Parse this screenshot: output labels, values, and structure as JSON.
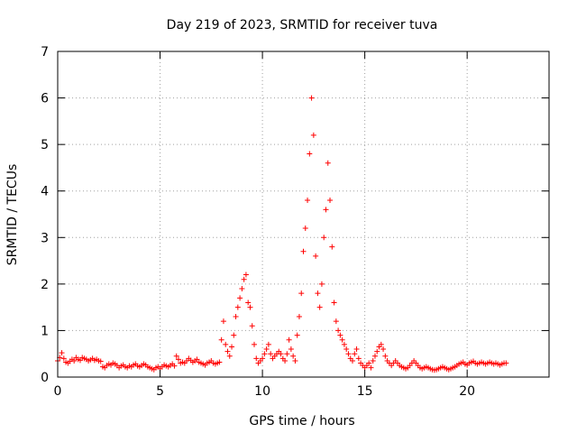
{
  "chart_data": {
    "type": "scatter",
    "title": "Day 219 of 2023, SRMTID for receiver tuva",
    "xlabel": "GPS time / hours",
    "ylabel": "SRMTID / TECUs",
    "xlim": [
      0,
      24
    ],
    "ylim": [
      0,
      7
    ],
    "xticks": [
      0,
      5,
      10,
      15,
      20
    ],
    "yticks": [
      0,
      1,
      2,
      3,
      4,
      5,
      6,
      7
    ],
    "grid": true,
    "marker": "+",
    "series": [
      {
        "name": "SRMTID",
        "color": "#ff0000",
        "x_start": 0.0,
        "x_step": 0.1,
        "values": [
          0.35,
          0.42,
          0.52,
          0.4,
          0.32,
          0.3,
          0.34,
          0.38,
          0.35,
          0.42,
          0.38,
          0.36,
          0.42,
          0.4,
          0.38,
          0.35,
          0.37,
          0.4,
          0.36,
          0.38,
          0.35,
          0.34,
          0.22,
          0.2,
          0.25,
          0.28,
          0.26,
          0.3,
          0.28,
          0.25,
          0.2,
          0.24,
          0.26,
          0.22,
          0.2,
          0.24,
          0.22,
          0.26,
          0.28,
          0.24,
          0.22,
          0.25,
          0.28,
          0.26,
          0.22,
          0.2,
          0.18,
          0.16,
          0.2,
          0.22,
          0.18,
          0.22,
          0.26,
          0.24,
          0.22,
          0.25,
          0.28,
          0.24,
          0.45,
          0.38,
          0.3,
          0.32,
          0.3,
          0.35,
          0.4,
          0.36,
          0.32,
          0.35,
          0.38,
          0.32,
          0.3,
          0.28,
          0.26,
          0.3,
          0.32,
          0.35,
          0.3,
          0.28,
          0.3,
          0.32,
          0.8,
          1.2,
          0.7,
          0.55,
          0.45,
          0.65,
          0.9,
          1.3,
          1.5,
          1.7,
          1.9,
          2.1,
          2.2,
          1.6,
          1.5,
          1.1,
          0.7,
          0.4,
          0.3,
          0.35,
          0.4,
          0.5,
          0.6,
          0.7,
          0.5,
          0.4,
          0.45,
          0.5,
          0.55,
          0.5,
          0.4,
          0.35,
          0.5,
          0.8,
          0.6,
          0.45,
          0.35,
          0.9,
          1.3,
          1.8,
          2.7,
          3.2,
          3.8,
          4.8,
          6.0,
          5.2,
          2.6,
          1.8,
          1.5,
          2.0,
          3.0,
          3.6,
          4.6,
          3.8,
          2.8,
          1.6,
          1.2,
          1.0,
          0.9,
          0.8,
          0.7,
          0.6,
          0.5,
          0.4,
          0.35,
          0.5,
          0.6,
          0.4,
          0.3,
          0.25,
          0.2,
          0.25,
          0.3,
          0.2,
          0.35,
          0.45,
          0.55,
          0.65,
          0.7,
          0.6,
          0.45,
          0.35,
          0.3,
          0.25,
          0.3,
          0.35,
          0.3,
          0.25,
          0.22,
          0.2,
          0.18,
          0.2,
          0.25,
          0.3,
          0.35,
          0.3,
          0.25,
          0.2,
          0.18,
          0.2,
          0.22,
          0.2,
          0.18,
          0.16,
          0.15,
          0.16,
          0.18,
          0.2,
          0.22,
          0.2,
          0.18,
          0.16,
          0.18,
          0.2,
          0.22,
          0.25,
          0.28,
          0.3,
          0.32,
          0.28,
          0.26,
          0.3,
          0.32,
          0.34,
          0.3,
          0.28,
          0.3,
          0.32,
          0.3,
          0.28,
          0.3,
          0.32,
          0.3,
          0.28,
          0.3,
          0.28,
          0.26,
          0.28,
          0.3,
          0.3
        ]
      }
    ]
  }
}
